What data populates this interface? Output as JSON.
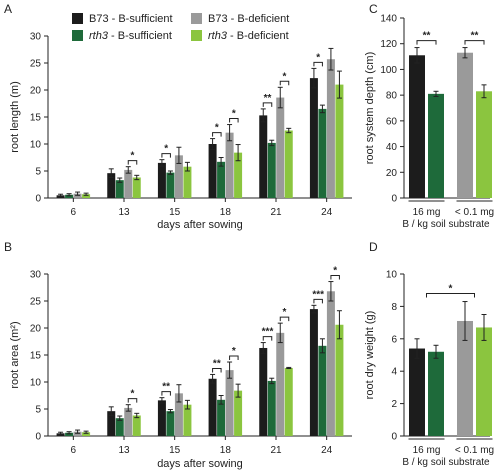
{
  "colors": {
    "b73_sufficient": "#1c1c1c",
    "rth3_sufficient": "#1e6a3a",
    "b73_deficient": "#9a9a9a",
    "rth3_deficient": "#8bc53f"
  },
  "legend": {
    "items": [
      {
        "key": "b73_sufficient",
        "label": "B73 - B-sufficient"
      },
      {
        "key": "b73_deficient",
        "label": "B73 - B-deficient"
      },
      {
        "key": "rth3_sufficient",
        "italic": "rth3",
        "rest": " - B-sufficient"
      },
      {
        "key": "rth3_deficient",
        "italic": "rth3",
        "rest": " - B-deficient"
      }
    ]
  },
  "chart_data": [
    {
      "panel": "A",
      "type": "bar",
      "xlabel": "days after sowing",
      "ylabel": "root length (m)",
      "ylim": [
        0,
        30
      ],
      "yticks": [
        0,
        5,
        10,
        15,
        20,
        25,
        30
      ],
      "categories": [
        "6",
        "13",
        "15",
        "18",
        "21",
        "24"
      ],
      "series": [
        {
          "key": "b73_sufficient",
          "values": [
            0.5,
            4.6,
            6.5,
            10.0,
            15.3,
            22.2
          ],
          "errors": [
            0.2,
            0.8,
            0.6,
            1.0,
            1.2,
            1.8
          ]
        },
        {
          "key": "rth3_sufficient",
          "values": [
            0.6,
            3.3,
            4.7,
            6.7,
            10.2,
            16.5
          ],
          "errors": [
            0.2,
            0.4,
            0.3,
            0.8,
            0.5,
            0.7
          ]
        },
        {
          "key": "b73_deficient",
          "values": [
            0.8,
            5.2,
            7.9,
            12.1,
            18.6,
            25.7
          ],
          "errors": [
            0.3,
            0.6,
            1.5,
            1.5,
            1.9,
            2.0
          ]
        },
        {
          "key": "rth3_deficient",
          "values": [
            0.7,
            3.8,
            5.8,
            8.4,
            12.5,
            21.0
          ],
          "errors": [
            0.2,
            0.4,
            0.8,
            1.5,
            0.4,
            2.5
          ]
        }
      ],
      "annotations": [
        {
          "category": 1,
          "pair": [
            2,
            3
          ],
          "label": "*"
        },
        {
          "category": 2,
          "pair": [
            0,
            1
          ],
          "label": "*"
        },
        {
          "category": 3,
          "pair": [
            0,
            1
          ],
          "label": "*"
        },
        {
          "category": 3,
          "pair": [
            2,
            3
          ],
          "label": "*"
        },
        {
          "category": 4,
          "pair": [
            0,
            1
          ],
          "label": "**"
        },
        {
          "category": 4,
          "pair": [
            2,
            3
          ],
          "label": "*"
        },
        {
          "category": 5,
          "pair": [
            0,
            1
          ],
          "label": "*"
        }
      ]
    },
    {
      "panel": "B",
      "type": "bar",
      "xlabel": "days after sowing",
      "ylabel": "root area (m²)",
      "ylim": [
        0,
        30
      ],
      "yticks": [
        0,
        5,
        10,
        15,
        20,
        25,
        30
      ],
      "categories": [
        "6",
        "13",
        "15",
        "18",
        "21",
        "24"
      ],
      "series": [
        {
          "key": "b73_sufficient",
          "values": [
            0.5,
            4.6,
            6.6,
            10.6,
            16.3,
            23.5
          ],
          "errors": [
            0.2,
            0.8,
            0.5,
            0.8,
            1.0,
            0.7
          ]
        },
        {
          "key": "rth3_sufficient",
          "values": [
            0.6,
            3.3,
            4.6,
            6.7,
            10.2,
            16.7
          ],
          "errors": [
            0.2,
            0.4,
            0.3,
            0.8,
            0.5,
            1.3
          ]
        },
        {
          "key": "b73_deficient",
          "values": [
            0.8,
            5.2,
            7.9,
            12.2,
            19.1,
            26.8
          ],
          "errors": [
            0.3,
            0.6,
            1.6,
            1.5,
            1.8,
            1.8
          ]
        },
        {
          "key": "rth3_deficient",
          "values": [
            0.7,
            3.8,
            5.8,
            8.4,
            12.6,
            20.6
          ],
          "errors": [
            0.2,
            0.4,
            0.8,
            1.2,
            0.1,
            2.6
          ]
        }
      ],
      "annotations": [
        {
          "category": 1,
          "pair": [
            2,
            3
          ],
          "label": "*"
        },
        {
          "category": 2,
          "pair": [
            0,
            1
          ],
          "label": "**"
        },
        {
          "category": 3,
          "pair": [
            0,
            1
          ],
          "label": "**"
        },
        {
          "category": 3,
          "pair": [
            2,
            3
          ],
          "label": "*"
        },
        {
          "category": 4,
          "pair": [
            0,
            1
          ],
          "label": "***"
        },
        {
          "category": 4,
          "pair": [
            2,
            3
          ],
          "label": "*"
        },
        {
          "category": 5,
          "pair": [
            0,
            1
          ],
          "label": "***"
        },
        {
          "category": 5,
          "pair": [
            2,
            3
          ],
          "label": "*"
        }
      ]
    },
    {
      "panel": "C",
      "type": "bar",
      "xlabel": "B / kg soil substrate",
      "ylabel": "root system depth (cm)",
      "ylim": [
        0,
        140
      ],
      "yticks": [
        0,
        20,
        40,
        60,
        80,
        100,
        120,
        140
      ],
      "categories": [
        "16 mg",
        "< 0.1 mg"
      ],
      "series": [
        {
          "key": "b73_sufficient",
          "category": 0,
          "value": 111,
          "error": 6
        },
        {
          "key": "rth3_sufficient",
          "category": 0,
          "value": 81,
          "error": 2
        },
        {
          "key": "b73_deficient",
          "category": 1,
          "value": 113,
          "error": 4
        },
        {
          "key": "rth3_deficient",
          "category": 1,
          "value": 83,
          "error": 5
        }
      ],
      "annotations": [
        {
          "bars": [
            0,
            1
          ],
          "label": "**"
        },
        {
          "bars": [
            2,
            3
          ],
          "label": "**"
        }
      ]
    },
    {
      "panel": "D",
      "type": "bar",
      "xlabel": "B / kg soil substrate",
      "ylabel": "root dry weight (g)",
      "ylim": [
        0,
        10
      ],
      "yticks": [
        0,
        2,
        4,
        6,
        8,
        10
      ],
      "categories": [
        "16 mg",
        "< 0.1 mg"
      ],
      "series": [
        {
          "key": "b73_sufficient",
          "category": 0,
          "value": 5.4,
          "error": 0.6
        },
        {
          "key": "rth3_sufficient",
          "category": 0,
          "value": 5.2,
          "error": 0.4
        },
        {
          "key": "b73_deficient",
          "category": 1,
          "value": 7.1,
          "error": 1.2
        },
        {
          "key": "rth3_deficient",
          "category": 1,
          "value": 6.7,
          "error": 0.8
        }
      ],
      "annotations": [
        {
          "groups": [
            0,
            1
          ],
          "label": "*"
        }
      ]
    }
  ],
  "panel_labels": [
    "A",
    "B",
    "C",
    "D"
  ]
}
